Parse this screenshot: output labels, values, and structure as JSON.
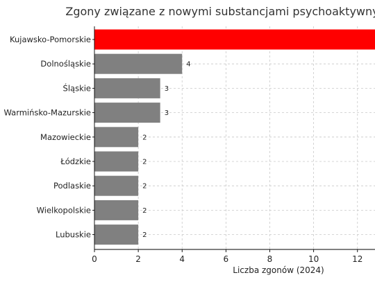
{
  "chart_data": {
    "type": "bar",
    "orientation": "horizontal",
    "title": "Zgony związane z nowymi substancjami psychoaktywnymi",
    "xlabel": "Liczba zgonów (2024)",
    "ylabel": "",
    "categories": [
      "Kujawsko-Pomorskie",
      "Dolnośląskie",
      "Śląskie",
      "Warmińsko-Mazurskie",
      "Mazowieckie",
      "Łódzkie",
      "Podlaskie",
      "Wielkopolskie",
      "Lubuskie"
    ],
    "values": [
      13,
      4,
      3,
      3,
      2,
      2,
      2,
      2,
      2
    ],
    "data_labels": [
      "",
      "4",
      "3",
      "3",
      "2",
      "2",
      "2",
      "2",
      "2"
    ],
    "bar_colors": [
      "#ff0000",
      "#808080",
      "#808080",
      "#808080",
      "#808080",
      "#808080",
      "#808080",
      "#808080",
      "#808080"
    ],
    "xlim": [
      0,
      12.8
    ],
    "xticks": [
      0,
      2,
      4,
      6,
      8,
      10,
      12
    ],
    "grid": true
  }
}
